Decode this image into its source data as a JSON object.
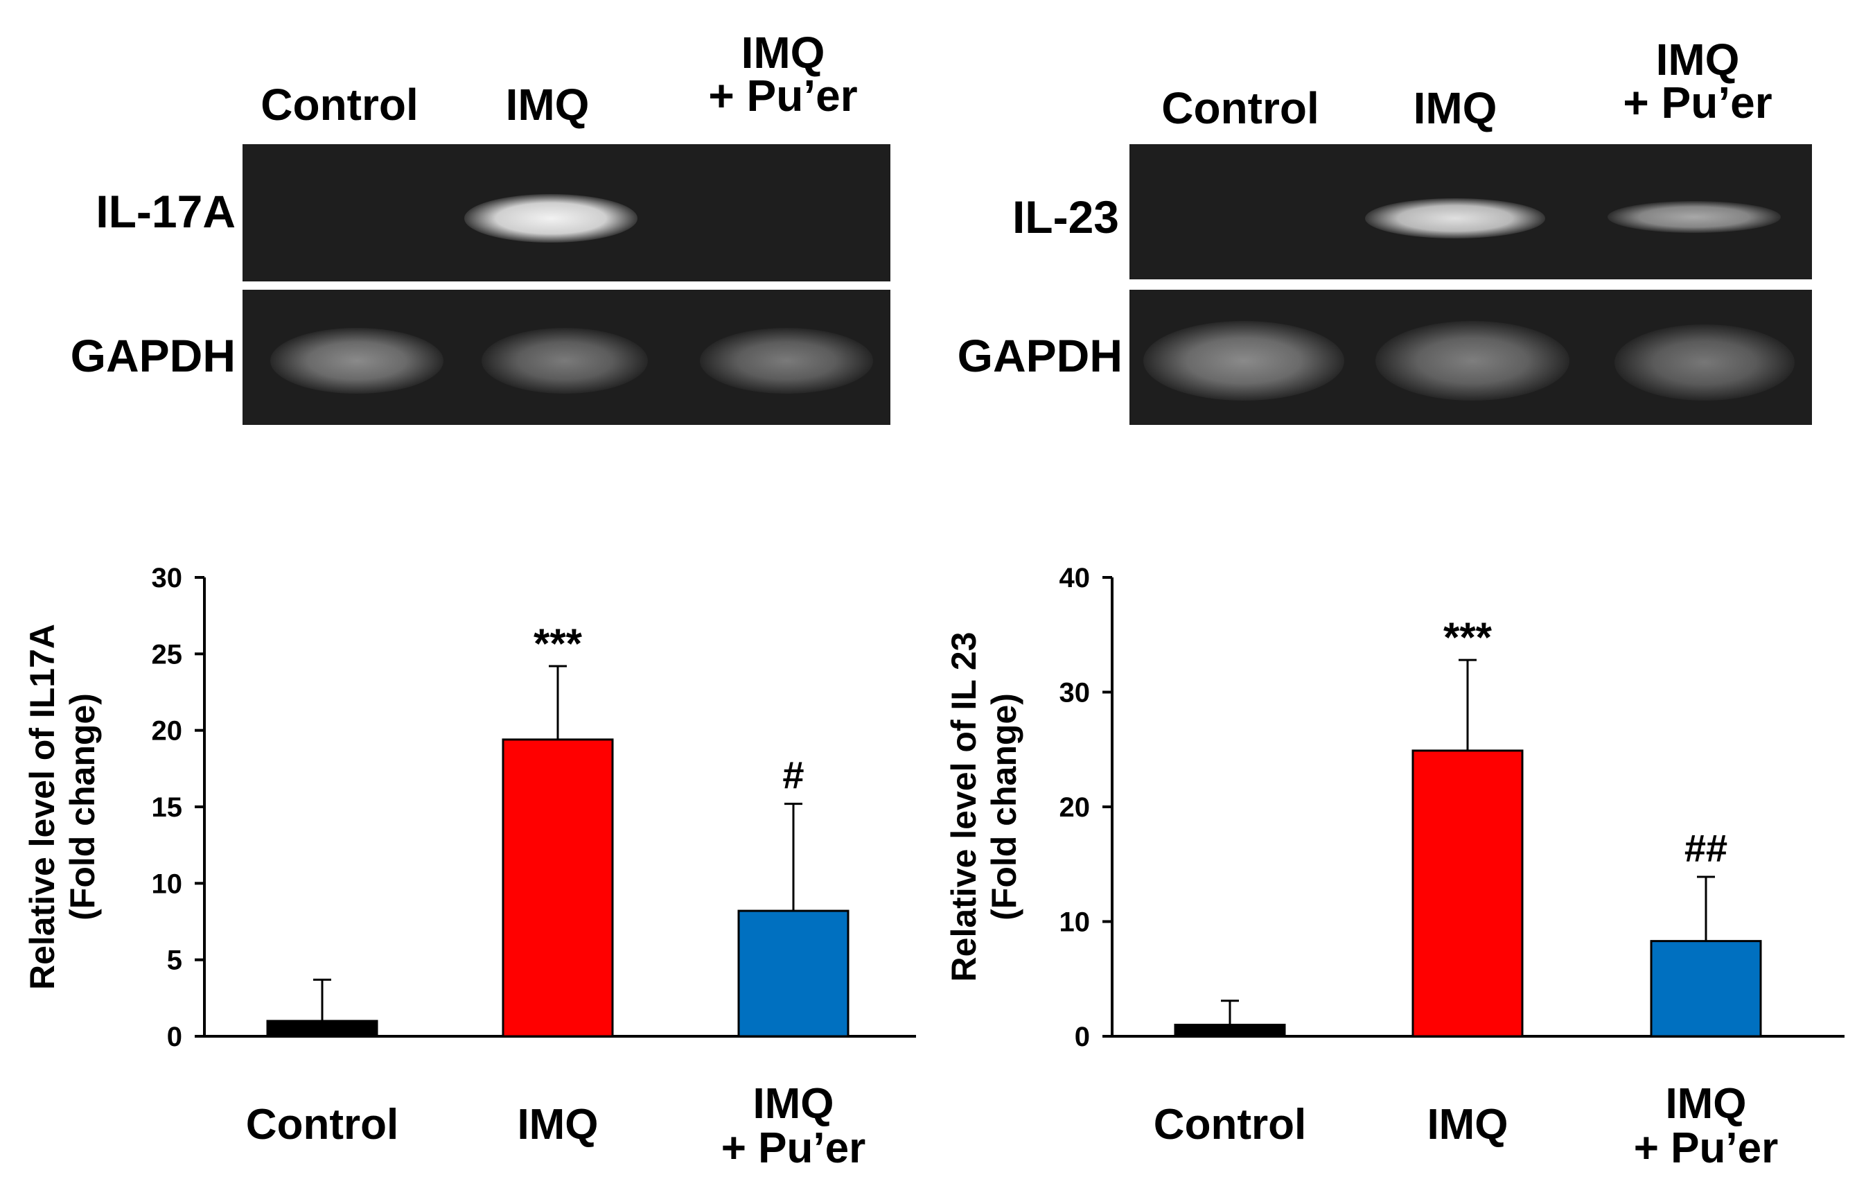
{
  "gels": [
    {
      "lanes": [
        "Control",
        "IMQ",
        "IMQ\n+ Pu’er"
      ],
      "rows": [
        {
          "gene": "IL-17A",
          "band_intensity": [
            0.0,
            0.9,
            0.0
          ]
        },
        {
          "gene": "GAPDH",
          "band_intensity": [
            0.45,
            0.4,
            0.4
          ]
        }
      ]
    },
    {
      "lanes": [
        "Control",
        "IMQ",
        "IMQ\n+ Pu’er"
      ],
      "rows": [
        {
          "gene": "IL-23",
          "band_intensity": [
            0.0,
            0.75,
            0.45
          ]
        },
        {
          "gene": "GAPDH",
          "band_intensity": [
            0.45,
            0.45,
            0.4
          ]
        }
      ]
    }
  ],
  "chart_data": [
    {
      "type": "bar",
      "categories": [
        "Control",
        "IMQ",
        "IMQ\n+ Pu’er"
      ],
      "values": [
        1.0,
        19.4,
        8.2
      ],
      "errors": [
        2.7,
        4.8,
        7.0
      ],
      "annotations": [
        "",
        "***",
        "#"
      ],
      "ylabel": [
        "Relative level of IL17A",
        "(Fold change)"
      ],
      "ylim": [
        0,
        30
      ],
      "yticks": [
        0,
        5,
        10,
        15,
        20,
        25,
        30
      ],
      "colors": [
        "#000000",
        "#ff0000",
        "#0070c0"
      ],
      "grid": false
    },
    {
      "type": "bar",
      "categories": [
        "Control",
        "IMQ",
        "IMQ\n+ Pu’er"
      ],
      "values": [
        1.0,
        24.9,
        8.3
      ],
      "errors": [
        2.1,
        7.9,
        5.6
      ],
      "annotations": [
        "",
        "***",
        "##"
      ],
      "ylabel": [
        "Relative level of IL 23",
        "(Fold change)"
      ],
      "ylim": [
        0,
        40
      ],
      "yticks": [
        0,
        10,
        20,
        30,
        40
      ],
      "colors": [
        "#000000",
        "#ff0000",
        "#0070c0"
      ],
      "grid": false
    }
  ]
}
